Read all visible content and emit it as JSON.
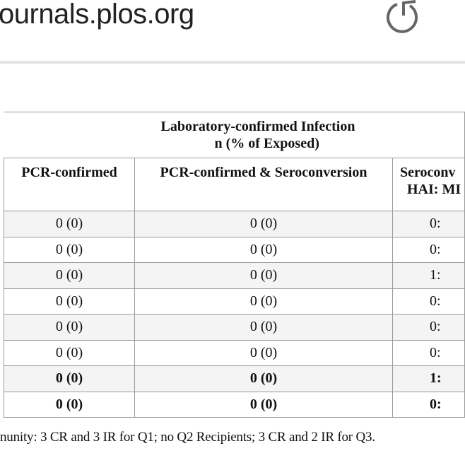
{
  "browser": {
    "url": "ournals.plos.org",
    "reload_icon": "reload-icon"
  },
  "table": {
    "group_header": {
      "line1": "Laboratory-confirmed Infection",
      "line2": "n (% of Exposed)"
    },
    "columns": [
      "PCR-confirmed",
      "PCR-confirmed & Seroconversion",
      "Seroconv",
      "HAI: MI"
    ],
    "rows": [
      [
        "0 (0)",
        "0 (0)",
        "0:"
      ],
      [
        "0 (0)",
        "0 (0)",
        "0:"
      ],
      [
        "0 (0)",
        "0 (0)",
        "1:"
      ],
      [
        "0 (0)",
        "0 (0)",
        "0:"
      ],
      [
        "0 (0)",
        "0 (0)",
        "0:"
      ],
      [
        "0 (0)",
        "0 (0)",
        "0:"
      ],
      [
        "0 (0)",
        "0 (0)",
        "1:"
      ],
      [
        "0 (0)",
        "0 (0)",
        "0:"
      ]
    ],
    "footnote": "nunity: 3 CR and 3 IR for Q1; no Q2 Recipients; 3 CR and 2 IR for Q3."
  }
}
